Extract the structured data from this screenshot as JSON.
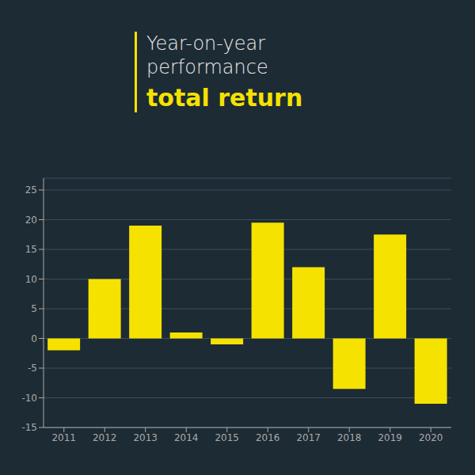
{
  "chart_data": {
    "type": "bar",
    "title": "Year-on-year performance",
    "subtitle": "total return",
    "categories": [
      "2011",
      "2012",
      "2013",
      "2014",
      "2015",
      "2016",
      "2017",
      "2018",
      "2019",
      "2020"
    ],
    "values": [
      -2,
      10,
      19,
      1,
      -1,
      19.5,
      12,
      -8.5,
      17.5,
      -11
    ],
    "color": "#f5e200",
    "ylim": [
      -15,
      27
    ],
    "yticks": [
      -15,
      -10,
      -5,
      0,
      5,
      10,
      15,
      20,
      25
    ],
    "grid": true
  }
}
